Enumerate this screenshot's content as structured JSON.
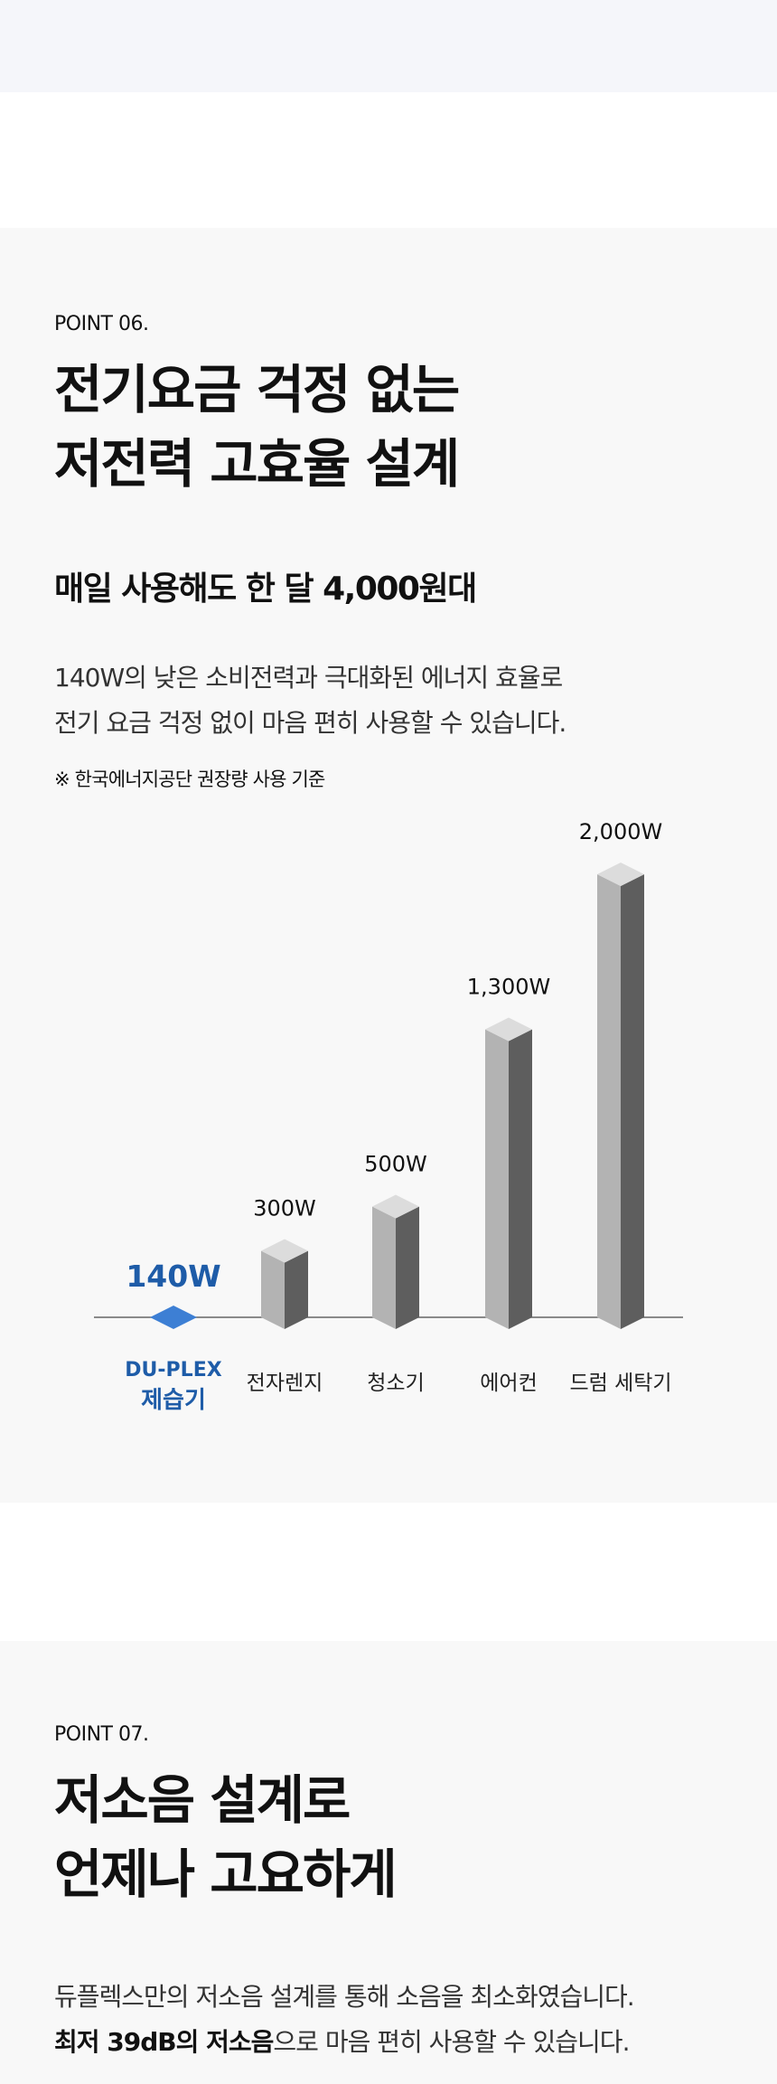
{
  "point6": {
    "label": "POINT 06.",
    "headline_line1": "전기요금 걱정 없는",
    "headline_line2": "저전력 고효율 설계",
    "subheadline": "매일 사용해도 한 달 4,000원대",
    "body_line1": "140W의 낮은 소비전력과 극대화된 에너지 효율로",
    "body_line2": "전기 요금 걱정 없이 마음 편히 사용할 수 있습니다.",
    "note": "※ 한국에너지공단 권장량 사용 기준"
  },
  "chart_data": {
    "type": "bar",
    "unit": "W",
    "categories": [
      "DU-PLEX 제습기",
      "전자렌지",
      "청소기",
      "에어컨",
      "드럼 세탁기"
    ],
    "values": [
      140,
      300,
      500,
      1300,
      2000
    ],
    "value_labels": [
      "140W",
      "300W",
      "500W",
      "1,300W",
      "2,000W"
    ],
    "highlight_index": 0,
    "highlight_label_line1": "DU-PLEX",
    "highlight_label_line2": "제습기",
    "colors": {
      "highlight": "#1e5ca8",
      "highlight_shape": "#3d7fd4",
      "bar_front": "#b3b3b3",
      "bar_side": "#5e5e5e",
      "bar_top": "#dcdcdc",
      "baseline": "#666666"
    }
  },
  "point7": {
    "label": "POINT 07.",
    "headline_line1": "저소음 설계로",
    "headline_line2": "언제나 고요하게",
    "body_line1": "듀플렉스만의 저소음 설계를 통해 소음을 최소화였습니다.",
    "body_line2_strong": "최저 39dB의 저소음",
    "body_line2_rest": "으로 마음 편히 사용할 수 있습니다."
  }
}
